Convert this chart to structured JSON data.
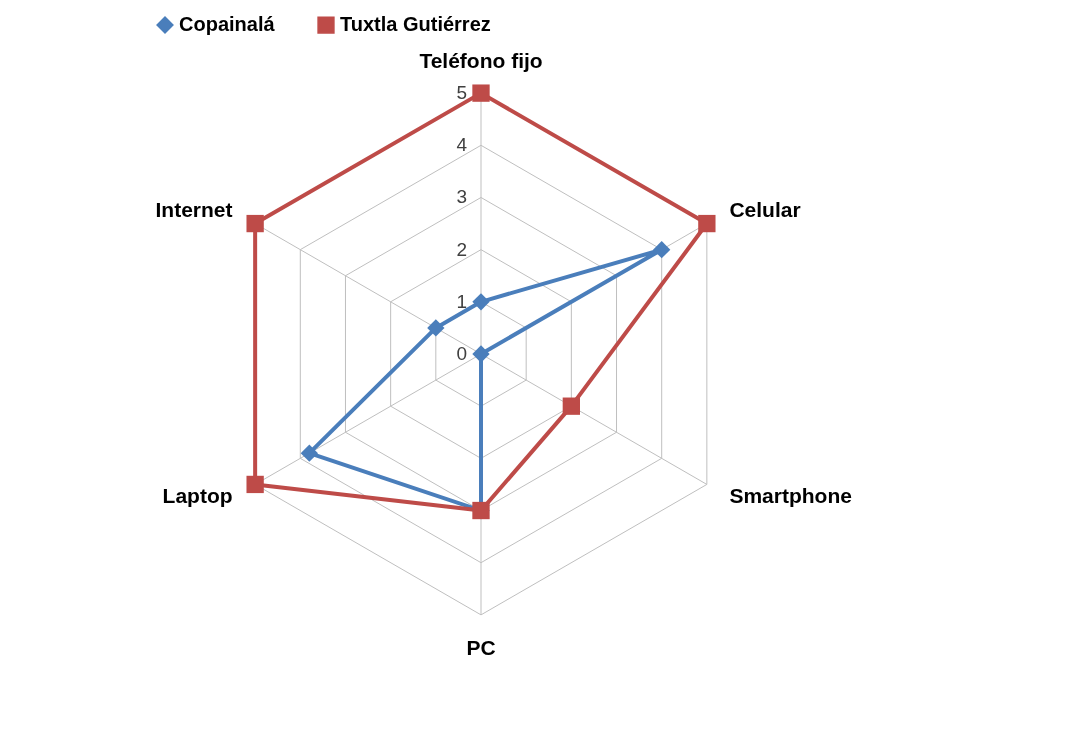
{
  "chart_data": {
    "type": "radar",
    "categories": [
      "Teléfono fijo",
      "Celular",
      "Smartphone",
      "PC",
      "Laptop",
      "Internet"
    ],
    "series": [
      {
        "name": "Copainalá",
        "color": "#4a7ebb",
        "marker": "diamond",
        "values": [
          1,
          4,
          0,
          3,
          3.8,
          1
        ]
      },
      {
        "name": "Tuxtla Gutiérrez",
        "color": "#be4b48",
        "marker": "square",
        "values": [
          5,
          5,
          2,
          3,
          5,
          5
        ]
      }
    ],
    "ylim": [
      0,
      5
    ],
    "yticks": [
      0,
      1,
      2,
      3,
      4,
      5
    ],
    "grid": true,
    "legend": "top"
  }
}
